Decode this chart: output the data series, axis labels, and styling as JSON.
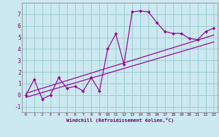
{
  "title": "",
  "xlabel": "Windchill (Refroidissement éolien,°C)",
  "ylabel": "",
  "bg_color": "#cce8f0",
  "line_color": "#990099",
  "grid_color": "#99cccc",
  "xlim": [
    -0.5,
    23.5
  ],
  "ylim": [
    -1.5,
    8.0
  ],
  "yticks": [
    -1,
    0,
    1,
    2,
    3,
    4,
    5,
    6,
    7
  ],
  "xticks": [
    0,
    1,
    2,
    3,
    4,
    5,
    6,
    7,
    8,
    9,
    10,
    11,
    12,
    13,
    14,
    15,
    16,
    17,
    18,
    19,
    20,
    21,
    22,
    23
  ],
  "data_x": [
    0,
    1,
    2,
    3,
    4,
    5,
    6,
    7,
    8,
    9,
    10,
    11,
    12,
    13,
    14,
    15,
    16,
    17,
    18,
    19,
    20,
    21,
    22,
    23
  ],
  "data_y": [
    0.0,
    1.35,
    -0.35,
    0.0,
    1.5,
    0.6,
    0.75,
    0.35,
    1.5,
    0.35,
    4.0,
    5.3,
    2.65,
    7.2,
    7.3,
    7.2,
    6.3,
    5.5,
    5.35,
    5.35,
    4.9,
    4.8,
    5.5,
    5.8
  ],
  "trend1_x": [
    0,
    23
  ],
  "trend1_y": [
    0.15,
    5.2
  ],
  "trend2_x": [
    0,
    23
  ],
  "trend2_y": [
    -0.2,
    4.6
  ]
}
